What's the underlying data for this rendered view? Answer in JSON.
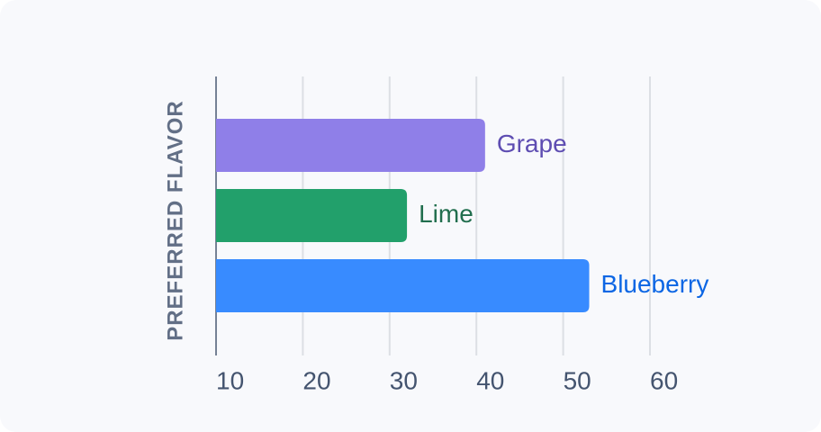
{
  "chart_data": {
    "type": "bar",
    "orientation": "horizontal",
    "ylabel": "PREFERRED FLAVOR",
    "categories": [
      "Grape",
      "Lime",
      "Blueberry"
    ],
    "values": [
      41,
      32,
      53
    ],
    "colors": [
      "#8f7fe8",
      "#22a06b",
      "#388bff"
    ],
    "label_colors": [
      "#5e4db2",
      "#216e4e",
      "#0c66e4"
    ],
    "xlim": [
      10,
      60
    ],
    "xticks": [
      10,
      20,
      30,
      40,
      50,
      60
    ],
    "grid": true
  }
}
